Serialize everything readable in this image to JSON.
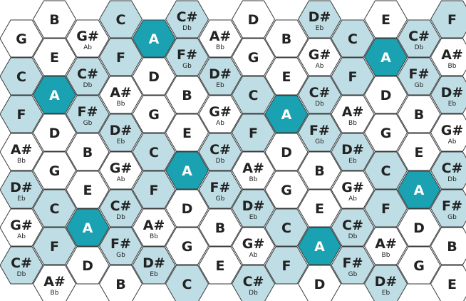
{
  "colors": {
    "white": "#ffffff",
    "light": "#bedde5",
    "accent": "#1aa1b2",
    "text_dark": "#222222",
    "text_light": "#ffffff",
    "stroke": "#3a3a3a"
  },
  "columns": [
    [
      {
        "n": "G",
        "a": "",
        "c": "white"
      },
      {
        "n": "C",
        "a": "",
        "c": "light"
      },
      {
        "n": "F",
        "a": "",
        "c": "light"
      },
      {
        "n": "A#",
        "a": "Bb",
        "c": "white"
      },
      {
        "n": "D#",
        "a": "Eb",
        "c": "light"
      },
      {
        "n": "G#",
        "a": "Ab",
        "c": "white"
      },
      {
        "n": "C#",
        "a": "Db",
        "c": "light"
      }
    ],
    [
      {
        "n": "B",
        "a": "",
        "c": "white"
      },
      {
        "n": "E",
        "a": "",
        "c": "white"
      },
      {
        "n": "A",
        "a": "",
        "c": "accent"
      },
      {
        "n": "D",
        "a": "",
        "c": "white"
      },
      {
        "n": "G",
        "a": "",
        "c": "white"
      },
      {
        "n": "C",
        "a": "",
        "c": "light"
      },
      {
        "n": "F",
        "a": "",
        "c": "light"
      },
      {
        "n": "A#",
        "a": "Bb",
        "c": "white"
      }
    ],
    [
      {
        "n": "G#",
        "a": "Ab",
        "c": "white"
      },
      {
        "n": "C#",
        "a": "Db",
        "c": "light"
      },
      {
        "n": "F#",
        "a": "Gb",
        "c": "light"
      },
      {
        "n": "B",
        "a": "",
        "c": "white"
      },
      {
        "n": "E",
        "a": "",
        "c": "white"
      },
      {
        "n": "A",
        "a": "",
        "c": "accent"
      },
      {
        "n": "D",
        "a": "",
        "c": "white"
      }
    ],
    [
      {
        "n": "C",
        "a": "",
        "c": "light"
      },
      {
        "n": "F",
        "a": "",
        "c": "light"
      },
      {
        "n": "A#",
        "a": "Bb",
        "c": "white"
      },
      {
        "n": "D#",
        "a": "Eb",
        "c": "light"
      },
      {
        "n": "G#",
        "a": "Ab",
        "c": "white"
      },
      {
        "n": "C#",
        "a": "Db",
        "c": "light"
      },
      {
        "n": "F#",
        "a": "Gb",
        "c": "light"
      },
      {
        "n": "B",
        "a": "",
        "c": "white"
      }
    ],
    [
      {
        "n": "A",
        "a": "",
        "c": "accent"
      },
      {
        "n": "D",
        "a": "",
        "c": "white"
      },
      {
        "n": "G",
        "a": "",
        "c": "white"
      },
      {
        "n": "C",
        "a": "",
        "c": "light"
      },
      {
        "n": "F",
        "a": "",
        "c": "light"
      },
      {
        "n": "A#",
        "a": "Bb",
        "c": "white"
      },
      {
        "n": "D#",
        "a": "Eb",
        "c": "light"
      }
    ],
    [
      {
        "n": "C#",
        "a": "Db",
        "c": "light"
      },
      {
        "n": "F#",
        "a": "Gb",
        "c": "light"
      },
      {
        "n": "B",
        "a": "",
        "c": "white"
      },
      {
        "n": "E",
        "a": "",
        "c": "white"
      },
      {
        "n": "A",
        "a": "",
        "c": "accent"
      },
      {
        "n": "D",
        "a": "",
        "c": "white"
      },
      {
        "n": "G",
        "a": "",
        "c": "white"
      },
      {
        "n": "C",
        "a": "",
        "c": "light"
      }
    ],
    [
      {
        "n": "A#",
        "a": "Bb",
        "c": "white"
      },
      {
        "n": "D#",
        "a": "Eb",
        "c": "light"
      },
      {
        "n": "G#",
        "a": "Ab",
        "c": "white"
      },
      {
        "n": "C#",
        "a": "Db",
        "c": "light"
      },
      {
        "n": "F#",
        "a": "Gb",
        "c": "light"
      },
      {
        "n": "B",
        "a": "",
        "c": "white"
      },
      {
        "n": "E",
        "a": "",
        "c": "white"
      }
    ],
    [
      {
        "n": "D",
        "a": "",
        "c": "white"
      },
      {
        "n": "G",
        "a": "",
        "c": "white"
      },
      {
        "n": "C",
        "a": "",
        "c": "light"
      },
      {
        "n": "F",
        "a": "",
        "c": "light"
      },
      {
        "n": "A#",
        "a": "Bb",
        "c": "white"
      },
      {
        "n": "D#",
        "a": "Eb",
        "c": "light"
      },
      {
        "n": "G#",
        "a": "Ab",
        "c": "white"
      },
      {
        "n": "C#",
        "a": "Db",
        "c": "light"
      }
    ],
    [
      {
        "n": "B",
        "a": "",
        "c": "white"
      },
      {
        "n": "E",
        "a": "",
        "c": "white"
      },
      {
        "n": "A",
        "a": "",
        "c": "accent"
      },
      {
        "n": "D",
        "a": "",
        "c": "white"
      },
      {
        "n": "G",
        "a": "",
        "c": "white"
      },
      {
        "n": "C",
        "a": "",
        "c": "light"
      },
      {
        "n": "F",
        "a": "",
        "c": "light"
      }
    ],
    [
      {
        "n": "D#",
        "a": "Eb",
        "c": "light"
      },
      {
        "n": "G#",
        "a": "Ab",
        "c": "white"
      },
      {
        "n": "C#",
        "a": "Db",
        "c": "light"
      },
      {
        "n": "F#",
        "a": "Gb",
        "c": "light"
      },
      {
        "n": "B",
        "a": "",
        "c": "white"
      },
      {
        "n": "E",
        "a": "",
        "c": "white"
      },
      {
        "n": "A",
        "a": "",
        "c": "accent"
      },
      {
        "n": "D",
        "a": "",
        "c": "white"
      }
    ],
    [
      {
        "n": "C",
        "a": "",
        "c": "light"
      },
      {
        "n": "F",
        "a": "",
        "c": "light"
      },
      {
        "n": "A#",
        "a": "Bb",
        "c": "white"
      },
      {
        "n": "D#",
        "a": "Eb",
        "c": "light"
      },
      {
        "n": "G#",
        "a": "Ab",
        "c": "white"
      },
      {
        "n": "C#",
        "a": "Db",
        "c": "light"
      },
      {
        "n": "F#",
        "a": "Gb",
        "c": "light"
      }
    ],
    [
      {
        "n": "E",
        "a": "",
        "c": "white"
      },
      {
        "n": "A",
        "a": "",
        "c": "accent"
      },
      {
        "n": "D",
        "a": "",
        "c": "white"
      },
      {
        "n": "G",
        "a": "",
        "c": "white"
      },
      {
        "n": "C",
        "a": "",
        "c": "light"
      },
      {
        "n": "F",
        "a": "",
        "c": "light"
      },
      {
        "n": "A#",
        "a": "Bb",
        "c": "white"
      },
      {
        "n": "D#",
        "a": "Eb",
        "c": "light"
      }
    ],
    [
      {
        "n": "C#",
        "a": "Db",
        "c": "light"
      },
      {
        "n": "F#",
        "a": "Gb",
        "c": "light"
      },
      {
        "n": "B",
        "a": "",
        "c": "white"
      },
      {
        "n": "E",
        "a": "",
        "c": "white"
      },
      {
        "n": "A",
        "a": "",
        "c": "accent"
      },
      {
        "n": "D",
        "a": "",
        "c": "white"
      },
      {
        "n": "G",
        "a": "",
        "c": "white"
      }
    ],
    [
      {
        "n": "F",
        "a": "",
        "c": "light"
      },
      {
        "n": "A#",
        "a": "Bb",
        "c": "white"
      },
      {
        "n": "D#",
        "a": "Eb",
        "c": "light"
      },
      {
        "n": "G#",
        "a": "Ab",
        "c": "white"
      },
      {
        "n": "C#",
        "a": "Db",
        "c": "light"
      },
      {
        "n": "F#",
        "a": "Gb",
        "c": "light"
      },
      {
        "n": "B",
        "a": "",
        "c": "white"
      },
      {
        "n": "E",
        "a": "",
        "c": "white"
      }
    ]
  ]
}
